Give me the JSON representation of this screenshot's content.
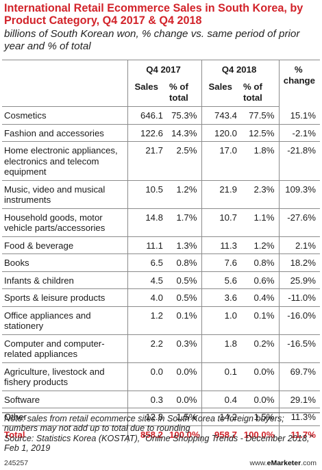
{
  "title": "International Retail Ecommerce Sales in South Korea, by Product Category, Q4 2017 & Q4 2018",
  "subtitle": "billions of South Korean won, % change vs. same period of prior year and % of total",
  "header": {
    "q4_2017": "Q4 2017",
    "q4_2018": "Q4 2018",
    "pct_change": "% change",
    "sales": "Sales",
    "pct_total": "% of total"
  },
  "rows": [
    {
      "category": "Cosmetics",
      "s17": "646.1",
      "p17": "75.3%",
      "s18": "743.4",
      "p18": "77.5%",
      "chg": "15.1%"
    },
    {
      "category": "Fashion and accessories",
      "s17": "122.6",
      "p17": "14.3%",
      "s18": "120.0",
      "p18": "12.5%",
      "chg": "-2.1%"
    },
    {
      "category": "Home electronic appliances, electronics and telecom equipment",
      "s17": "21.7",
      "p17": "2.5%",
      "s18": "17.0",
      "p18": "1.8%",
      "chg": "-21.8%"
    },
    {
      "category": "Music, video and musical instruments",
      "s17": "10.5",
      "p17": "1.2%",
      "s18": "21.9",
      "p18": "2.3%",
      "chg": "109.3%"
    },
    {
      "category": "Household goods, motor vehicle parts/accessories",
      "s17": "14.8",
      "p17": "1.7%",
      "s18": "10.7",
      "p18": "1.1%",
      "chg": "-27.6%"
    },
    {
      "category": "Food & beverage",
      "s17": "11.1",
      "p17": "1.3%",
      "s18": "11.3",
      "p18": "1.2%",
      "chg": "2.1%"
    },
    {
      "category": "Books",
      "s17": "6.5",
      "p17": "0.8%",
      "s18": "7.6",
      "p18": "0.8%",
      "chg": "18.2%"
    },
    {
      "category": "Infants & children",
      "s17": "4.5",
      "p17": "0.5%",
      "s18": "5.6",
      "p18": "0.6%",
      "chg": "25.9%"
    },
    {
      "category": "Sports & leisure products",
      "s17": "4.0",
      "p17": "0.5%",
      "s18": "3.6",
      "p18": "0.4%",
      "chg": "-11.0%"
    },
    {
      "category": "Office appliances and stationery",
      "s17": "1.2",
      "p17": "0.1%",
      "s18": "1.0",
      "p18": "0.1%",
      "chg": "-16.0%"
    },
    {
      "category": "Computer and computer-related appliances",
      "s17": "2.2",
      "p17": "0.3%",
      "s18": "1.8",
      "p18": "0.2%",
      "chg": "-16.5%"
    },
    {
      "category": "Agriculture, livestock and fishery products",
      "s17": "0.0",
      "p17": "0.0%",
      "s18": "0.1",
      "p18": "0.0%",
      "chg": "69.7%"
    },
    {
      "category": "Software",
      "s17": "0.3",
      "p17": "0.0%",
      "s18": "0.4",
      "p18": "0.0%",
      "chg": "29.1%"
    },
    {
      "category": "Other",
      "s17": "12.8",
      "p17": "1.5%",
      "s18": "14.2",
      "p18": "1.5%",
      "chg": "11.3%"
    }
  ],
  "total": {
    "category": "Total",
    "s17": "858.2",
    "p17": "100.0%",
    "s18": "958.7",
    "p18": "100.0%",
    "chg": "11.7%"
  },
  "note": "Note: sales from retail ecommerce sites in South Korea to foreign buyers; numbers may not add up to total due to rounding",
  "source": "Source: Statistics Korea (KOSTAT), \"Online Shopping Trends - December 2018,\" Feb 1, 2019",
  "footer": {
    "id": "245257",
    "brand_prefix": "www.",
    "brand_name": "eMarketer",
    "brand_suffix": ".com"
  },
  "colors": {
    "accent": "#d2232a",
    "rule": "#8a8a8a"
  }
}
